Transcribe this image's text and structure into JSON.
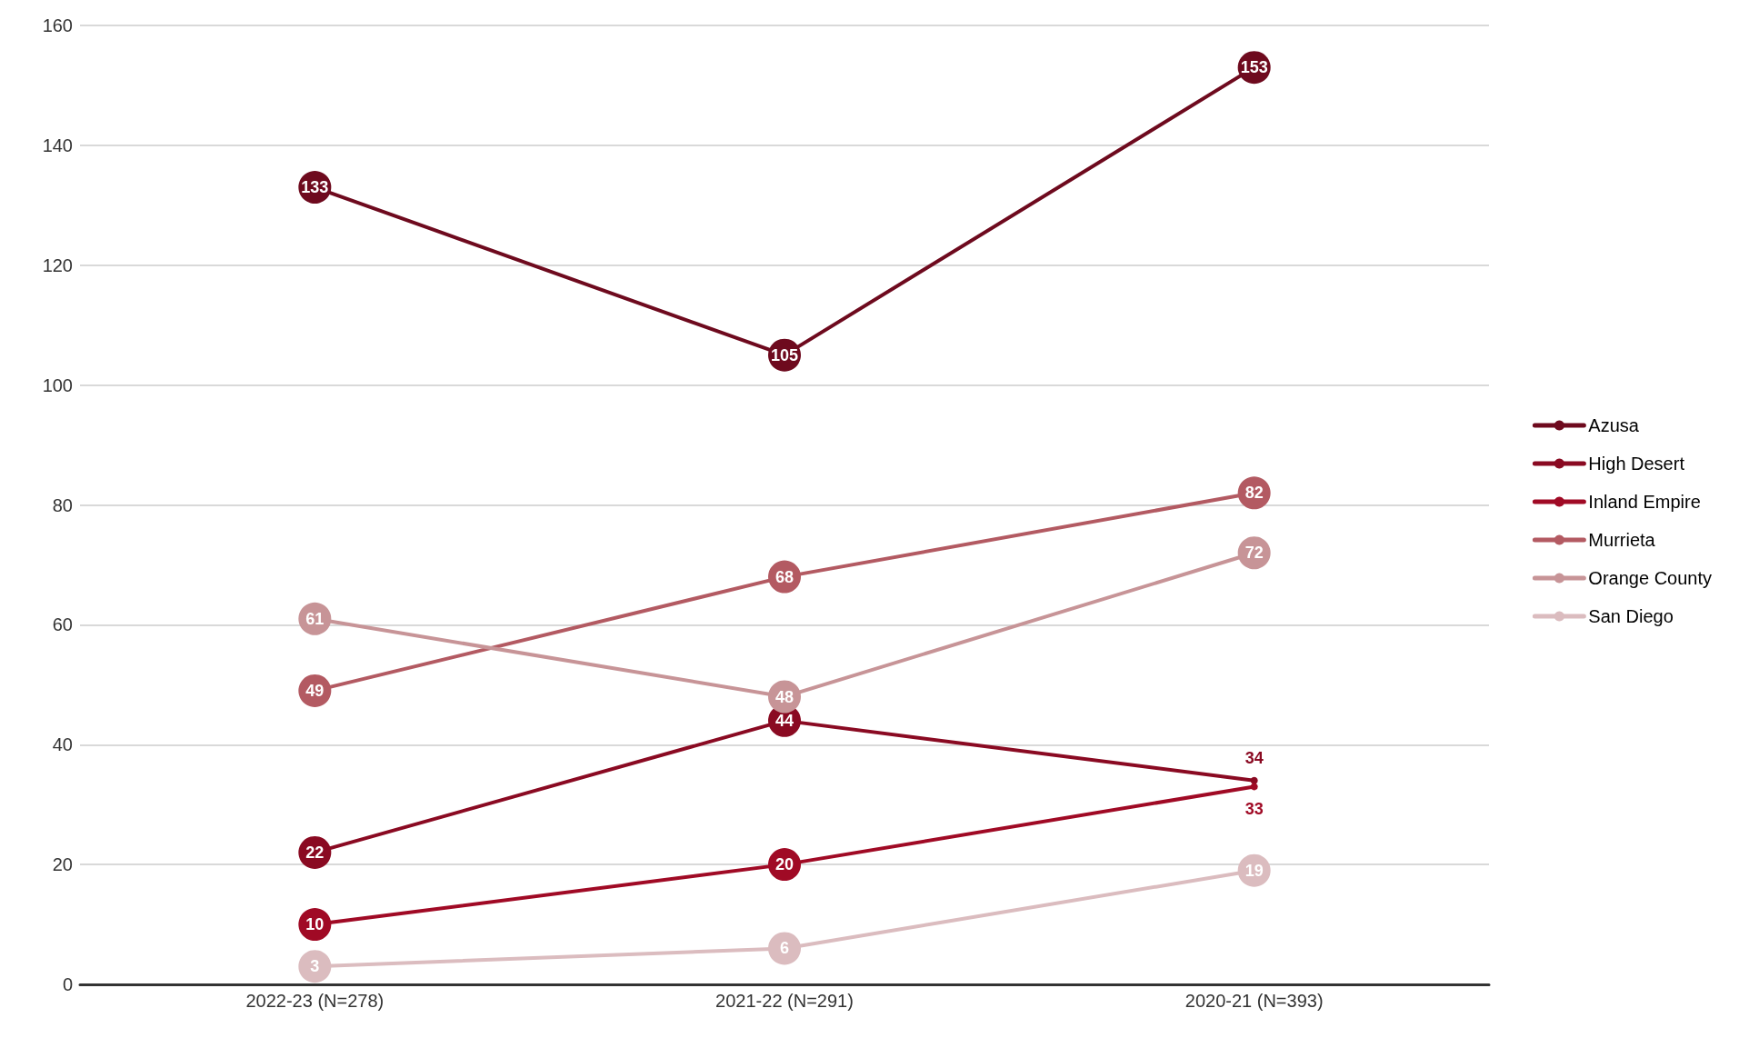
{
  "chart_data": {
    "type": "line",
    "categories": [
      "2022-23 (N=278)",
      "2021-22 (N=291)",
      "2020-21 (N=393)"
    ],
    "series": [
      {
        "name": "Azusa",
        "color": "#6e0a1e",
        "values": [
          133,
          105,
          153
        ]
      },
      {
        "name": "High Desert",
        "color": "#8a0a22",
        "values": [
          22,
          44,
          34
        ]
      },
      {
        "name": "Inland Empire",
        "color": "#a00a25",
        "values": [
          10,
          20,
          33
        ]
      },
      {
        "name": "Murrieta",
        "color": "#b35a62",
        "values": [
          49,
          68,
          82
        ]
      },
      {
        "name": "Orange County",
        "color": "#c79497",
        "values": [
          61,
          48,
          72
        ]
      },
      {
        "name": "San Diego",
        "color": "#dbbcbf",
        "values": [
          3,
          6,
          19
        ]
      }
    ],
    "ylim": [
      0,
      160
    ],
    "yticks": [
      0,
      20,
      40,
      60,
      80,
      100,
      120,
      140,
      160
    ],
    "grid": "y",
    "legend": "right",
    "marker": "circle",
    "line_style": "solid",
    "data_labels": true
  }
}
